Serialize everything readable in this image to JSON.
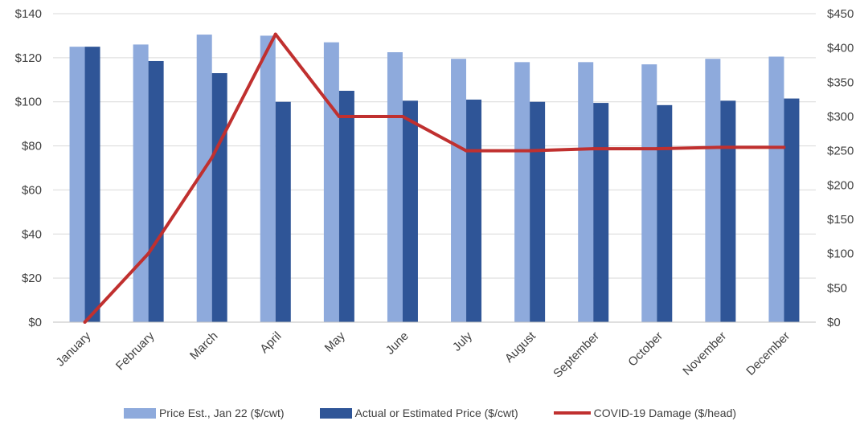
{
  "chart_data": {
    "type": "bar",
    "categories": [
      "January",
      "February",
      "March",
      "April",
      "May",
      "June",
      "July",
      "August",
      "September",
      "October",
      "November",
      "December"
    ],
    "series": [
      {
        "name": "Price Est., Jan 22 ($/cwt)",
        "type": "bar",
        "axis": "left",
        "color": "#8eaadc",
        "values": [
          125,
          126,
          130.5,
          130,
          127,
          122.5,
          119.5,
          118,
          118,
          117,
          119.5,
          120.5
        ]
      },
      {
        "name": "Actual or Estimated Price ($/cwt)",
        "type": "bar",
        "axis": "left",
        "color": "#2f5597",
        "values": [
          125,
          118.5,
          113,
          100,
          105,
          100.5,
          101,
          100,
          99.5,
          98.5,
          100.5,
          101.5
        ]
      },
      {
        "name": "COVID-19 Damage ($/head)",
        "type": "line",
        "axis": "right",
        "color": "#c0302f",
        "values": [
          0,
          100,
          240,
          420,
          300,
          300,
          250,
          250,
          253,
          253,
          255,
          255
        ]
      }
    ],
    "y_left": {
      "ylim": [
        0,
        140
      ],
      "ticks": [
        0,
        20,
        40,
        60,
        80,
        100,
        120,
        140
      ],
      "tick_labels": [
        "$0",
        "$20",
        "$40",
        "$60",
        "$80",
        "$100",
        "$120",
        "$140"
      ]
    },
    "y_right": {
      "ylim": [
        0,
        450
      ],
      "ticks": [
        0,
        50,
        100,
        150,
        200,
        250,
        300,
        350,
        400,
        450
      ],
      "tick_labels": [
        "$0",
        "$50",
        "$100",
        "$150",
        "$200",
        "$250",
        "$300",
        "$350",
        "$400",
        "$450"
      ]
    },
    "grid": true,
    "legend_position": "bottom"
  }
}
